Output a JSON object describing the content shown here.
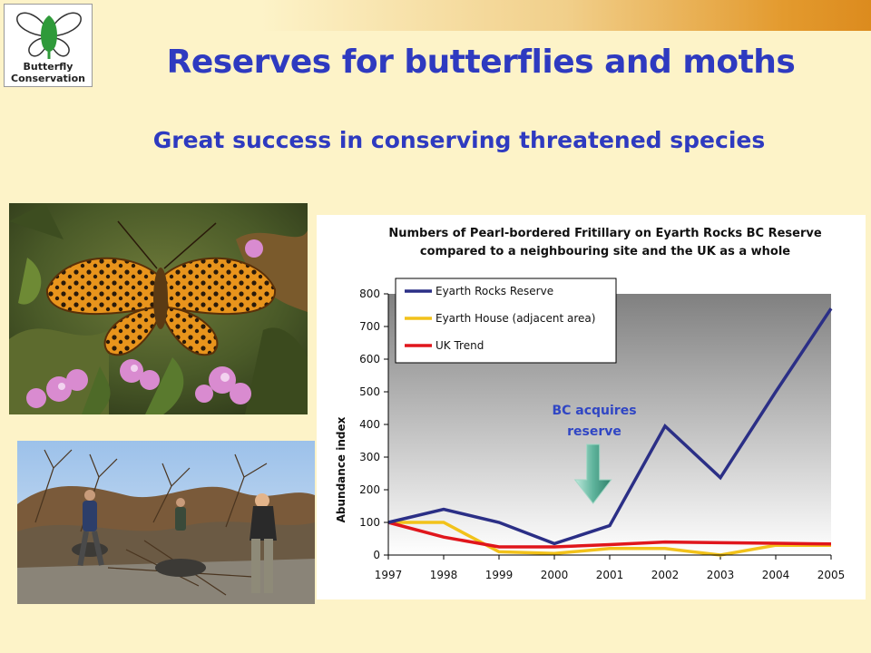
{
  "logo": {
    "line1": "Butterfly",
    "line2": "Conservation"
  },
  "title": "Reserves for butterflies and moths",
  "subtitle": "Great success in conserving threatened species",
  "chart_data": {
    "type": "line",
    "title_line1": "Numbers of Pearl-bordered Fritillary on Eyarth Rocks BC Reserve",
    "title_line2": "compared to a neighbouring site and the UK as a whole",
    "ylabel": "Abundance index",
    "xlabel": "",
    "x": [
      "1997",
      "1998",
      "1999",
      "2000",
      "2001",
      "2002",
      "2003",
      "2004",
      "2005"
    ],
    "ylim": [
      0,
      800
    ],
    "yticks": [
      0,
      100,
      200,
      300,
      400,
      500,
      600,
      700,
      800
    ],
    "legend_position": "top-left",
    "series": [
      {
        "name": "Eyarth Rocks Reserve",
        "color": "#2b2f86",
        "values": [
          100,
          140,
          100,
          35,
          90,
          395,
          237,
          500,
          755
        ]
      },
      {
        "name": "Eyarth House (adjacent area)",
        "color": "#f2c21a",
        "values": [
          100,
          100,
          10,
          5,
          20,
          20,
          0,
          30,
          30
        ]
      },
      {
        "name": "UK Trend",
        "color": "#e0161c",
        "values": [
          100,
          55,
          25,
          25,
          32,
          40,
          38,
          36,
          34
        ]
      }
    ],
    "annotation": {
      "line1": "BC acquires",
      "line2": "reserve",
      "year_position": 2000.7
    }
  }
}
